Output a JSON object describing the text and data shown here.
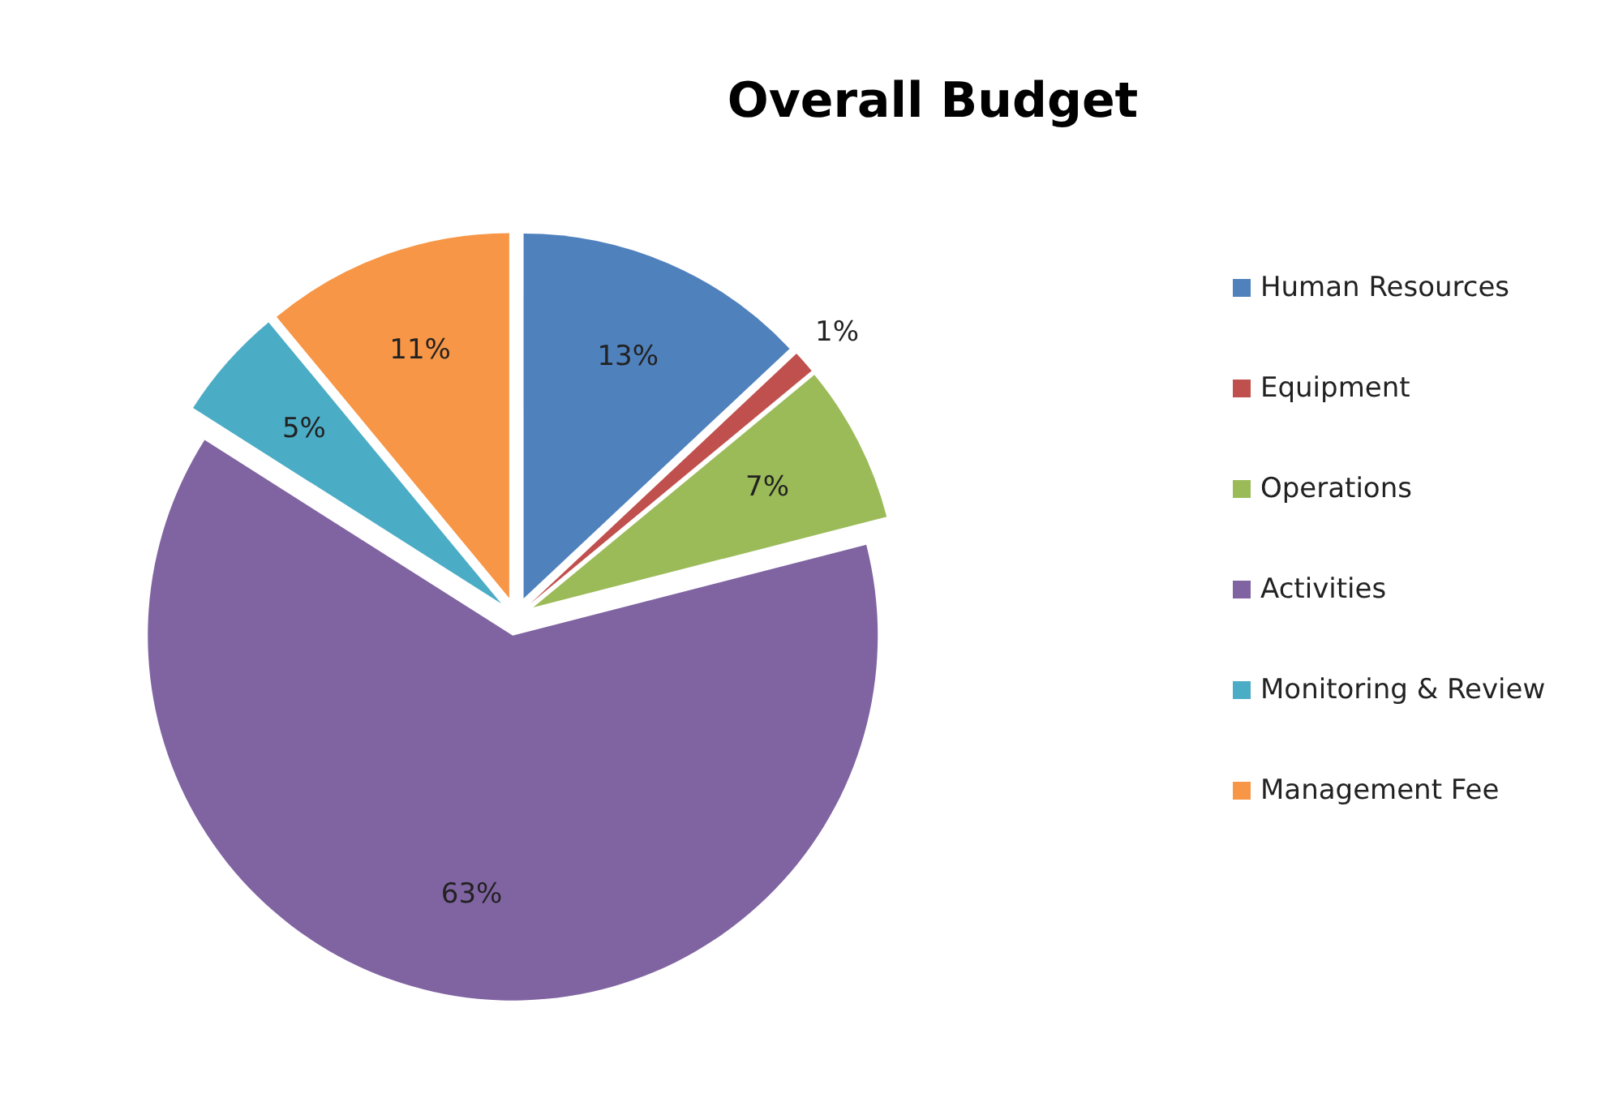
{
  "chart_data": {
    "type": "pie",
    "title": "Overall Budget",
    "categories": [
      "Human Resources",
      "Equipment",
      "Operations",
      "Activities",
      "Monitoring & Review",
      "Management Fee"
    ],
    "values": [
      13,
      1,
      7,
      63,
      5,
      11
    ],
    "value_labels": [
      "13%",
      "1%",
      "7%",
      "63%",
      "5%",
      "11%"
    ],
    "colors": [
      "#4f81bd",
      "#c0504d",
      "#9bbb59",
      "#8064a2",
      "#4bacc6",
      "#f79646"
    ],
    "legend": "right"
  }
}
